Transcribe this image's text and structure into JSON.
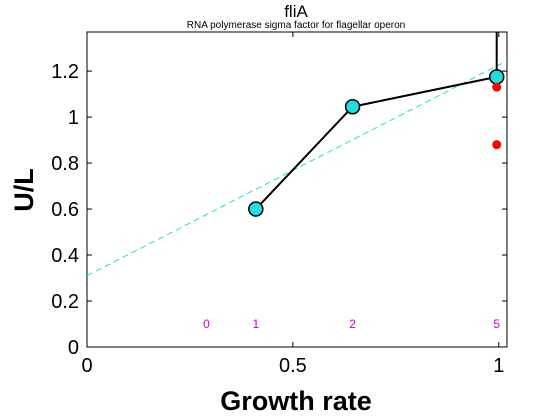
{
  "chart_data": {
    "type": "line",
    "title": "fliA",
    "subtitle": "RNA polymerase sigma factor for flagellar operon",
    "xlabel": "Growth rate",
    "ylabel": "U/L",
    "xlim": [
      0,
      1.02
    ],
    "ylim": [
      0,
      1.37
    ],
    "x_ticks": [
      0,
      0.5,
      1
    ],
    "x_tick_labels": [
      "0",
      "0.5",
      "1"
    ],
    "y_ticks": [
      0,
      0.2,
      0.4,
      0.6,
      0.8,
      1.0,
      1.2
    ],
    "y_tick_labels": [
      "0",
      "0.2",
      "0.4",
      "0.6",
      "0.8",
      "1",
      "1.2"
    ],
    "grid": false,
    "series": [
      {
        "kind": "line-with-markers",
        "color": "#000000",
        "marker_fill": "#22dddd",
        "x": [
          0.41,
          0.645,
          0.995
        ],
        "y": [
          0.6,
          1.045,
          1.175
        ],
        "error_bar_top": [
          0.6,
          1.045,
          1.37
        ]
      },
      {
        "kind": "fit-dashed",
        "color": "#22dddd",
        "x": [
          0,
          1.02
        ],
        "y": [
          0.31,
          1.245
        ]
      },
      {
        "kind": "points",
        "color": "#ff0000",
        "x": [
          0.995,
          0.995
        ],
        "y": [
          1.13,
          0.88
        ]
      }
    ],
    "annotations": [
      {
        "text": "0",
        "x": 0.29,
        "y": 0.1,
        "color": "#cc00cc"
      },
      {
        "text": "1",
        "x": 0.41,
        "y": 0.1,
        "color": "#cc00cc"
      },
      {
        "text": "2",
        "x": 0.645,
        "y": 0.1,
        "color": "#cc00cc"
      },
      {
        "text": "5",
        "x": 0.995,
        "y": 0.1,
        "color": "#cc00cc"
      }
    ]
  }
}
